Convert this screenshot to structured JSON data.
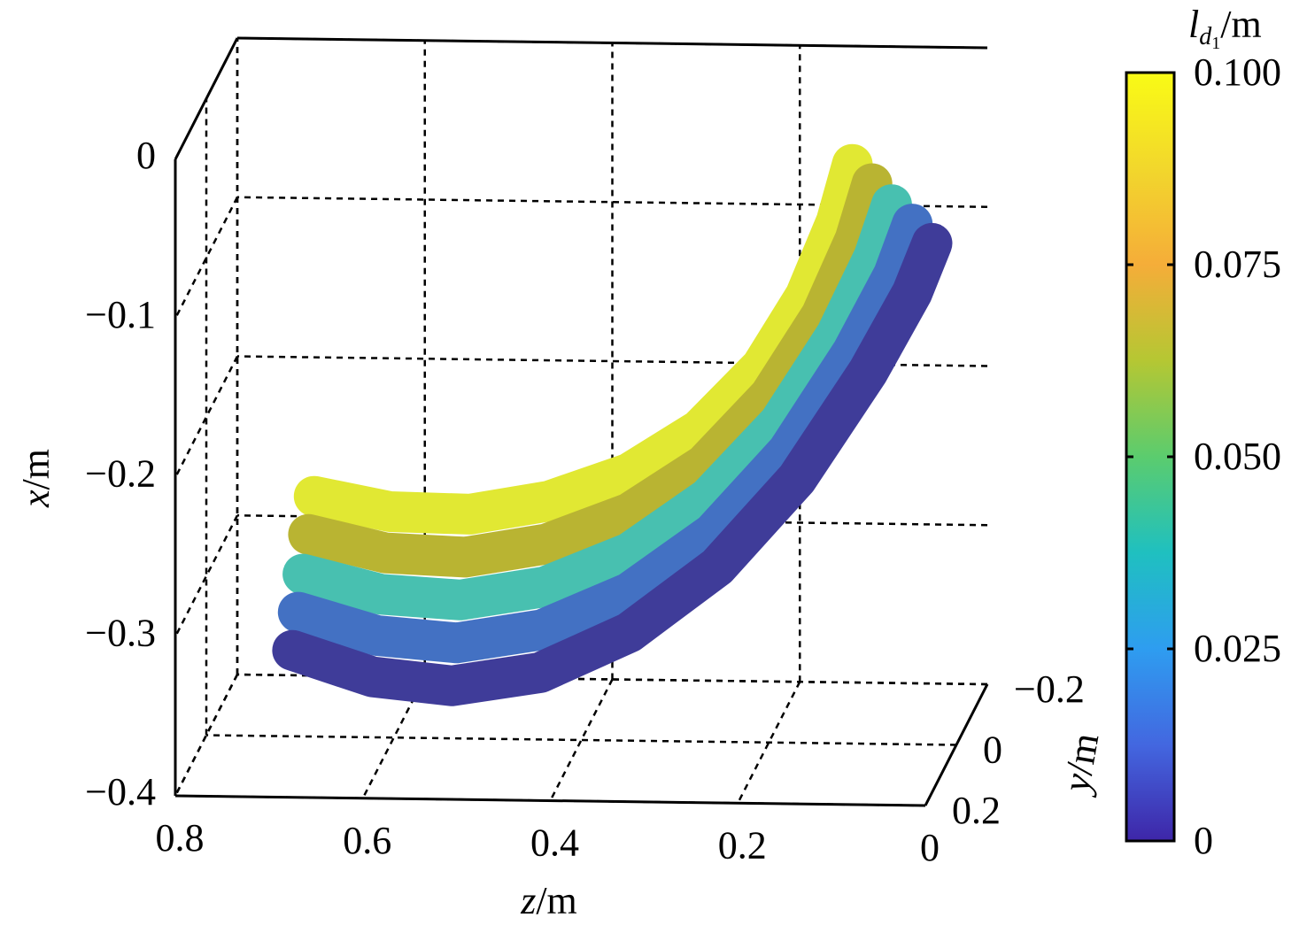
{
  "chart_data": {
    "type": "scatter3d",
    "xlabel": {
      "var": "x",
      "unit": "/m"
    },
    "ylabel": {
      "var": "y",
      "unit": "/m"
    },
    "zlabel": {
      "var": "z",
      "unit": "/m"
    },
    "xlim": [
      -0.4,
      0
    ],
    "xticks": [
      {
        "value": 0,
        "label": "0"
      },
      {
        "value": -0.1,
        "label": "−0.1"
      },
      {
        "value": -0.2,
        "label": "−0.2"
      },
      {
        "value": -0.3,
        "label": "−0.3"
      },
      {
        "value": -0.4,
        "label": "−0.4"
      }
    ],
    "ylim": [
      -0.2,
      0.2
    ],
    "yticks": [
      {
        "value": -0.2,
        "label": "−0.2"
      },
      0,
      0.2
    ],
    "zlim": [
      0,
      0.8
    ],
    "zticks": [
      0.8,
      0.6,
      0.4,
      0.2,
      0
    ],
    "grid": true,
    "colorbar": {
      "label": {
        "base": "l",
        "sub": "d",
        "subsub": "1",
        "unit": "/m"
      },
      "lim": [
        0,
        0.1
      ],
      "ticks": [
        {
          "value": 0.1,
          "label": "0.100"
        },
        {
          "value": 0.075,
          "label": "0.075"
        },
        {
          "value": 0.05,
          "label": "0.050"
        },
        {
          "value": 0.025,
          "label": "0.025"
        },
        0
      ],
      "colormap": [
        "#3e26a8",
        "#4367e0",
        "#2e9df0",
        "#1fc0c0",
        "#5bcc6e",
        "#b5c733",
        "#f5ad39",
        "#f2d72c",
        "#f9fb15"
      ]
    },
    "series": [
      {
        "color": "#3f3c99",
        "z": [
          0.708,
          0.623,
          0.538,
          0.444,
          0.349,
          0.255,
          0.17,
          0.094,
          0.047,
          0.026
        ],
        "x": [
          -0.346,
          -0.362,
          -0.367,
          -0.358,
          -0.332,
          -0.29,
          -0.234,
          -0.166,
          -0.116,
          -0.085
        ]
      },
      {
        "color": "#4371c3",
        "z": [
          0.702,
          0.618,
          0.533,
          0.442,
          0.349,
          0.26,
          0.18,
          0.111,
          0.067,
          0.047
        ],
        "x": [
          -0.322,
          -0.336,
          -0.34,
          -0.331,
          -0.307,
          -0.269,
          -0.217,
          -0.154,
          -0.105,
          -0.073
        ]
      },
      {
        "color": "#48c0b0",
        "z": [
          0.697,
          0.614,
          0.529,
          0.439,
          0.349,
          0.265,
          0.189,
          0.128,
          0.088,
          0.069
        ],
        "x": [
          -0.298,
          -0.31,
          -0.313,
          -0.304,
          -0.282,
          -0.247,
          -0.199,
          -0.143,
          -0.094,
          -0.061
        ]
      },
      {
        "color": "#b9b432",
        "z": [
          0.691,
          0.609,
          0.524,
          0.437,
          0.349,
          0.269,
          0.199,
          0.144,
          0.108,
          0.09
        ],
        "x": [
          -0.273,
          -0.284,
          -0.286,
          -0.277,
          -0.257,
          -0.226,
          -0.182,
          -0.131,
          -0.083,
          -0.048
        ]
      },
      {
        "color": "#e1e833",
        "z": [
          0.685,
          0.604,
          0.519,
          0.434,
          0.349,
          0.274,
          0.208,
          0.161,
          0.128,
          0.111
        ],
        "x": [
          -0.249,
          -0.258,
          -0.259,
          -0.25,
          -0.232,
          -0.204,
          -0.164,
          -0.119,
          -0.072,
          -0.036
        ]
      }
    ]
  }
}
